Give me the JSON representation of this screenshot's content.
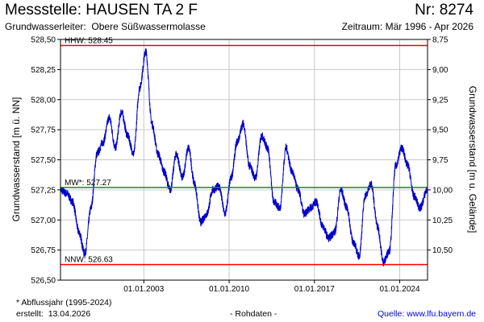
{
  "header": {
    "title": "Messstelle: HAUSEN TA 2 F",
    "nr": "Nr: 8274",
    "aquifer_label": "Grundwasserleiter:",
    "aquifer_value": "Obere Süßwassermolasse",
    "period": "Zeitraum: Mär 1996 - Apr 2026"
  },
  "footer": {
    "note": "* Abflussjahr (1995-2024)",
    "created_label": "erstellt:",
    "created_date": "13.04.2026",
    "rawdata": "- Rohdaten -",
    "source_label": "Quelle:",
    "source_link": "www.lfu.bayern.de"
  },
  "colors": {
    "series": "#0000cc",
    "hhw": "#ff0000",
    "nnw": "#ff0000",
    "mw": "#009900",
    "grid": "#c8c8c8"
  },
  "chart_data": {
    "type": "line",
    "ylabel": "Grundwasserstand [m ü. NN]",
    "y2label": "Grundwasserstand [m u. Gelände]",
    "ylim": [
      526.5,
      528.5
    ],
    "y2lim": [
      10.75,
      8.75
    ],
    "xlim": [
      "1996-03-01",
      "2026-04-13"
    ],
    "yticks": [
      "528,50",
      "528,25",
      "528,00",
      "527,75",
      "527,50",
      "527,25",
      "527,00",
      "526,75",
      "526,50"
    ],
    "y2ticks": [
      "8,75",
      "9,00",
      "9,25",
      "9,50",
      "9,75",
      "10,00",
      "10,25",
      "10,50"
    ],
    "xticks": [
      "01.01.2003",
      "01.01.2010",
      "01.01.2017",
      "01.01.2024"
    ],
    "grid": true,
    "reference_lines": [
      {
        "label": "HHW: 528.45",
        "value": 528.45,
        "color": "#ff0000"
      },
      {
        "label": "MW*: 527.27",
        "value": 527.27,
        "color": "#009900"
      },
      {
        "label": "NNW: 526.63",
        "value": 526.63,
        "color": "#ff0000"
      }
    ],
    "series": [
      {
        "x": [
          "1996-03",
          "1996-09",
          "1997-03",
          "1997-09",
          "1998-03",
          "1998-09",
          "1999-03",
          "1999-09",
          "2000-03",
          "2000-09",
          "2001-03",
          "2001-09",
          "2002-03",
          "2002-09",
          "2003-03",
          "2003-09",
          "2004-03",
          "2004-09",
          "2005-03",
          "2005-09",
          "2006-03",
          "2006-09",
          "2007-03",
          "2007-09",
          "2008-03",
          "2008-09",
          "2009-03",
          "2009-09",
          "2010-03",
          "2010-09",
          "2011-03",
          "2011-09",
          "2012-03",
          "2012-09",
          "2013-03",
          "2013-09",
          "2014-03",
          "2014-09",
          "2015-03",
          "2015-09",
          "2016-03",
          "2016-09",
          "2017-03",
          "2017-09",
          "2018-03",
          "2018-09",
          "2019-03",
          "2019-09",
          "2020-03",
          "2020-09",
          "2021-03",
          "2021-09",
          "2022-03",
          "2022-09",
          "2023-03",
          "2023-09",
          "2024-03",
          "2024-09",
          "2025-03",
          "2025-09",
          "2026-04"
        ],
        "y": [
          527.25,
          527.22,
          527.15,
          526.9,
          526.72,
          527.1,
          527.55,
          527.65,
          527.85,
          527.6,
          527.9,
          527.7,
          527.55,
          528.1,
          528.4,
          527.8,
          527.55,
          527.4,
          527.25,
          527.55,
          527.35,
          527.6,
          527.3,
          526.98,
          527.05,
          527.25,
          527.28,
          527.05,
          527.35,
          527.65,
          527.8,
          527.45,
          527.35,
          527.7,
          527.6,
          527.15,
          527.1,
          527.6,
          527.4,
          527.25,
          527.05,
          527.1,
          527.15,
          526.95,
          526.85,
          526.9,
          527.25,
          527.1,
          526.82,
          526.7,
          527.2,
          527.3,
          526.95,
          526.65,
          526.75,
          527.45,
          527.6,
          527.45,
          527.2,
          527.1,
          527.25
        ]
      }
    ]
  }
}
